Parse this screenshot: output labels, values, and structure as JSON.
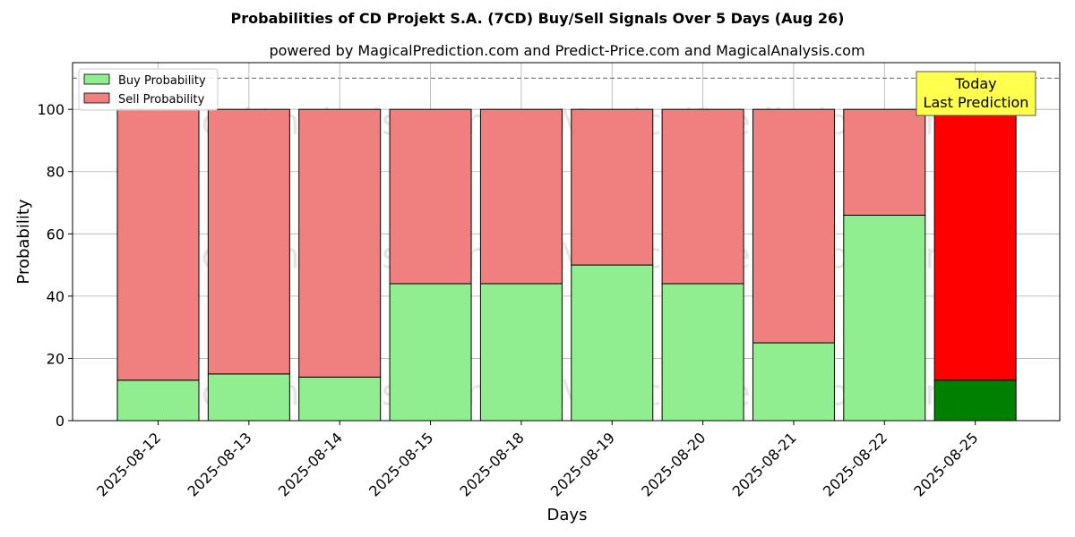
{
  "chart_data": {
    "type": "bar",
    "stacked": true,
    "title": "Probabilities of CD Projekt S.A. (7CD) Buy/Sell Signals Over 5 Days (Aug 26)",
    "subtitle": "powered by MagicalPrediction.com and Predict-Price.com and MagicalAnalysis.com",
    "xlabel": "Days",
    "ylabel": "Probability",
    "ylim": [
      0,
      115
    ],
    "yticks": [
      0,
      20,
      40,
      60,
      80,
      100
    ],
    "categories": [
      "2025-08-12",
      "2025-08-13",
      "2025-08-14",
      "2025-08-15",
      "2025-08-18",
      "2025-08-19",
      "2025-08-20",
      "2025-08-21",
      "2025-08-22",
      "2025-08-25"
    ],
    "series": [
      {
        "name": "Buy Probability",
        "values": [
          13,
          15,
          14,
          44,
          44,
          50,
          44,
          25,
          66,
          13
        ],
        "color": "#90ee90",
        "highlight_color": "#008000"
      },
      {
        "name": "Sell Probability",
        "values": [
          87,
          85,
          86,
          56,
          56,
          50,
          56,
          75,
          34,
          87
        ],
        "color": "#f08080",
        "highlight_color": "#ff0000"
      }
    ],
    "highlight_index": 9,
    "reference_line": 110,
    "grid": true,
    "legend_position": "top-left",
    "annotation": {
      "lines": [
        "Today",
        "Last Prediction"
      ],
      "background": "#ffff4d"
    },
    "watermark": "MagicalAnalysis.com      MagicalPrediction.com"
  }
}
